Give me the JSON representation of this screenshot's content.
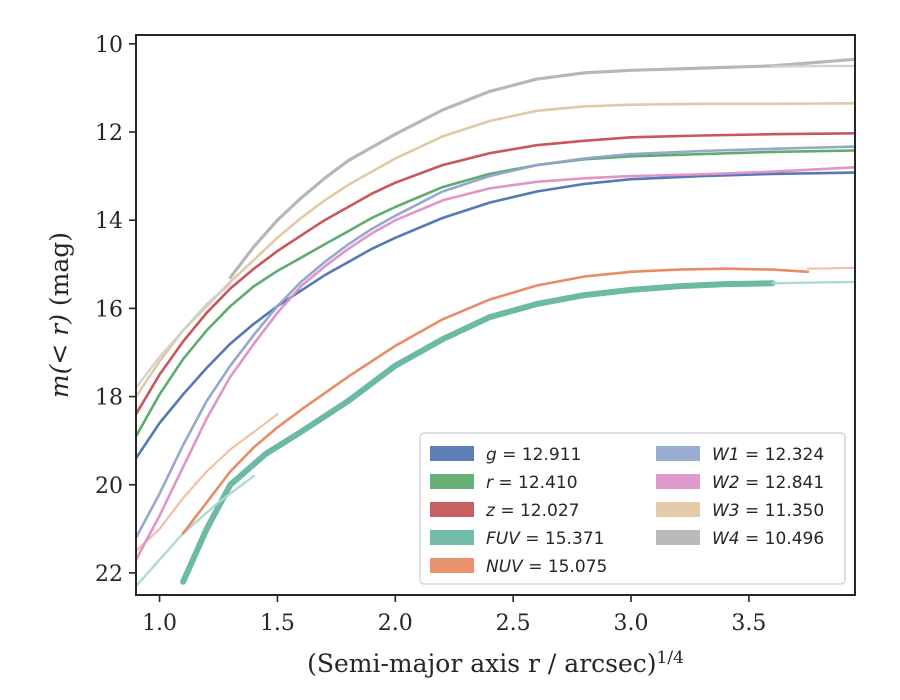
{
  "chart_data": {
    "type": "line",
    "title": "",
    "xlabel": "(Semi-major axis r / arcsec)",
    "xlabel_exponent": "1/4",
    "ylabel_prefix": "m(< r)",
    "ylabel_suffix": " (mag)",
    "xlim": [
      0.9,
      3.95
    ],
    "ylim": [
      22.5,
      9.8
    ],
    "y_inverted": true,
    "grid": false,
    "legend_placement": "lower-right",
    "x_ticks": [
      {
        "v": 1.0,
        "label": "1.0"
      },
      {
        "v": 1.5,
        "label": "1.5"
      },
      {
        "v": 2.0,
        "label": "2.0"
      },
      {
        "v": 2.5,
        "label": "2.5"
      },
      {
        "v": 3.0,
        "label": "3.0"
      },
      {
        "v": 3.5,
        "label": "3.5"
      }
    ],
    "y_ticks": [
      {
        "v": 10,
        "label": "10"
      },
      {
        "v": 12,
        "label": "12"
      },
      {
        "v": 14,
        "label": "14"
      },
      {
        "v": 16,
        "label": "16"
      },
      {
        "v": 18,
        "label": "18"
      },
      {
        "v": 20,
        "label": "20"
      },
      {
        "v": 22,
        "label": "22"
      }
    ],
    "series": [
      {
        "name": "g = 12.911",
        "band": "g",
        "value": "12.911",
        "color": "#4c72b0",
        "width": 2.6,
        "x": [
          0.9,
          1.0,
          1.1,
          1.2,
          1.3,
          1.4,
          1.5,
          1.6,
          1.7,
          1.8,
          1.9,
          2.0,
          2.2,
          2.4,
          2.6,
          2.8,
          3.0,
          3.3,
          3.6,
          3.95
        ],
        "y": [
          19.4,
          18.6,
          17.95,
          17.35,
          16.8,
          16.35,
          15.95,
          15.6,
          15.25,
          14.95,
          14.65,
          14.4,
          13.95,
          13.6,
          13.35,
          13.18,
          13.07,
          13.0,
          12.95,
          12.92
        ]
      },
      {
        "name": "r = 12.410",
        "band": "r",
        "value": "12.410",
        "color": "#55a868",
        "width": 2.6,
        "x": [
          0.9,
          1.0,
          1.1,
          1.2,
          1.3,
          1.4,
          1.5,
          1.6,
          1.7,
          1.8,
          1.9,
          2.0,
          2.2,
          2.4,
          2.6,
          2.8,
          3.0,
          3.3,
          3.6,
          3.95
        ],
        "y": [
          18.9,
          17.95,
          17.15,
          16.5,
          15.95,
          15.5,
          15.15,
          14.85,
          14.55,
          14.25,
          13.95,
          13.7,
          13.25,
          12.95,
          12.75,
          12.62,
          12.55,
          12.5,
          12.45,
          12.42
        ]
      },
      {
        "name": "z = 12.027",
        "band": "z",
        "value": "12.027",
        "color": "#c44e52",
        "width": 2.6,
        "x": [
          0.9,
          1.0,
          1.1,
          1.2,
          1.3,
          1.4,
          1.5,
          1.6,
          1.7,
          1.8,
          1.9,
          2.0,
          2.2,
          2.4,
          2.6,
          2.8,
          3.0,
          3.3,
          3.6,
          3.95
        ],
        "y": [
          18.4,
          17.5,
          16.75,
          16.1,
          15.55,
          15.1,
          14.7,
          14.35,
          14.0,
          13.7,
          13.4,
          13.15,
          12.75,
          12.48,
          12.3,
          12.2,
          12.12,
          12.08,
          12.05,
          12.03
        ]
      },
      {
        "name": "FUV = 15.371",
        "band": "FUV",
        "value": "15.371",
        "color": "#64b5a0",
        "width": 6,
        "x": [
          1.1,
          1.2,
          1.3,
          1.45,
          1.6,
          1.8,
          2.0,
          2.2,
          2.4,
          2.6,
          2.8,
          3.0,
          3.2,
          3.4,
          3.6
        ],
        "y": [
          22.2,
          21.0,
          20.0,
          19.3,
          18.8,
          18.1,
          17.3,
          16.7,
          16.2,
          15.9,
          15.7,
          15.58,
          15.5,
          15.45,
          15.43
        ]
      },
      {
        "name": "",
        "band": "",
        "value": "",
        "color": "#a9d9cb",
        "width": 2.4,
        "x": [
          0.9,
          1.0,
          1.1,
          1.25,
          1.4
        ],
        "y": [
          22.3,
          21.7,
          21.1,
          20.4,
          19.8
        ]
      },
      {
        "name": "",
        "band": "",
        "value": "",
        "color": "#a9d9cb",
        "width": 2.4,
        "x": [
          3.6,
          3.8,
          3.95
        ],
        "y": [
          15.43,
          15.41,
          15.4
        ]
      },
      {
        "name": "NUV = 15.075",
        "band": "NUV",
        "value": "15.075",
        "color": "#e8855d",
        "width": 2.6,
        "x": [
          1.1,
          1.2,
          1.3,
          1.4,
          1.5,
          1.6,
          1.8,
          2.0,
          2.2,
          2.4,
          2.6,
          2.8,
          3.0,
          3.2,
          3.4,
          3.6,
          3.75
        ],
        "y": [
          21.1,
          20.4,
          19.7,
          19.15,
          18.7,
          18.3,
          17.55,
          16.85,
          16.25,
          15.8,
          15.48,
          15.28,
          15.17,
          15.12,
          15.1,
          15.12,
          15.17
        ]
      },
      {
        "name": "",
        "band": "",
        "value": "",
        "color": "#f3bc9f",
        "width": 2.2,
        "x": [
          0.9,
          1.0,
          1.1,
          1.2,
          1.3,
          1.4,
          1.5
        ],
        "y": [
          21.5,
          21.0,
          20.3,
          19.7,
          19.2,
          18.8,
          18.4
        ]
      },
      {
        "name": "",
        "band": "",
        "value": "",
        "color": "#f3bc9f",
        "width": 2.2,
        "x": [
          3.75,
          3.85,
          3.95
        ],
        "y": [
          15.1,
          15.09,
          15.08
        ]
      },
      {
        "name": "W1 = 12.324",
        "band": "W1",
        "value": "12.324",
        "color": "#8fa3cc",
        "width": 2.6,
        "x": [
          0.9,
          1.0,
          1.1,
          1.2,
          1.3,
          1.4,
          1.5,
          1.6,
          1.7,
          1.8,
          1.9,
          2.0,
          2.2,
          2.4,
          2.6,
          2.8,
          3.0,
          3.3,
          3.6,
          3.95
        ],
        "y": [
          21.2,
          20.2,
          19.1,
          18.1,
          17.3,
          16.6,
          15.95,
          15.4,
          14.95,
          14.55,
          14.2,
          13.9,
          13.35,
          13.0,
          12.75,
          12.6,
          12.5,
          12.43,
          12.38,
          12.33
        ]
      },
      {
        "name": "W2 = 12.841",
        "band": "W2",
        "value": "12.841",
        "color": "#dd8fc6",
        "width": 2.6,
        "x": [
          0.9,
          1.0,
          1.1,
          1.2,
          1.3,
          1.4,
          1.5,
          1.6,
          1.7,
          1.8,
          1.9,
          2.0,
          2.2,
          2.4,
          2.6,
          2.8,
          3.0,
          3.3,
          3.6,
          3.95
        ],
        "y": [
          21.7,
          20.7,
          19.6,
          18.5,
          17.55,
          16.8,
          16.1,
          15.5,
          15.05,
          14.65,
          14.3,
          14.0,
          13.55,
          13.28,
          13.13,
          13.05,
          13.0,
          12.96,
          12.9,
          12.8
        ]
      },
      {
        "name": "W3 = 11.350",
        "band": "W3",
        "value": "11.350",
        "color": "#e0c6a1",
        "width": 2.6,
        "x": [
          0.9,
          1.0,
          1.1,
          1.2,
          1.3,
          1.4,
          1.5,
          1.6,
          1.7,
          1.8,
          1.9,
          2.0,
          2.2,
          2.4,
          2.6,
          2.8,
          3.0,
          3.3,
          3.6,
          3.95
        ],
        "y": [
          18.0,
          17.2,
          16.5,
          15.95,
          15.4,
          14.9,
          14.4,
          13.95,
          13.55,
          13.2,
          12.9,
          12.6,
          12.1,
          11.75,
          11.52,
          11.42,
          11.38,
          11.36,
          11.36,
          11.35
        ]
      },
      {
        "name": "W4 = 10.496",
        "band": "W4",
        "value": "10.496",
        "color": "#b3b3b3",
        "width": 3.2,
        "x": [
          1.3,
          1.4,
          1.5,
          1.6,
          1.7,
          1.8,
          1.9,
          2.0,
          2.2,
          2.4,
          2.6,
          2.8,
          3.0,
          3.3,
          3.6,
          3.95
        ],
        "y": [
          15.3,
          14.6,
          14.0,
          13.5,
          13.05,
          12.65,
          12.35,
          12.05,
          11.5,
          11.08,
          10.8,
          10.66,
          10.6,
          10.55,
          10.5,
          10.35
        ]
      },
      {
        "name": "",
        "band": "",
        "value": "",
        "color": "#d0d0d0",
        "width": 2.4,
        "x": [
          0.9,
          1.0,
          1.1,
          1.2,
          1.3
        ],
        "y": [
          17.8,
          17.1,
          16.5,
          15.9,
          15.45
        ]
      },
      {
        "name": "",
        "band": "",
        "value": "",
        "color": "#d0d0d0",
        "width": 2.4,
        "x": [
          3.6,
          3.8,
          3.95
        ],
        "y": [
          10.52,
          10.5,
          10.5
        ]
      }
    ],
    "legend": [
      {
        "band": "g",
        "value": "12.911",
        "color": "#4c72b0"
      },
      {
        "band": "r",
        "value": "12.410",
        "color": "#55a868"
      },
      {
        "band": "z",
        "value": "12.027",
        "color": "#c44e52"
      },
      {
        "band": "FUV",
        "value": "15.371",
        "color": "#64b5a0"
      },
      {
        "band": "NUV",
        "value": "15.075",
        "color": "#e8855d"
      },
      {
        "band": "W1",
        "value": "12.324",
        "color": "#8fa3cc"
      },
      {
        "band": "W2",
        "value": "12.841",
        "color": "#dd8fc6"
      },
      {
        "band": "W3",
        "value": "11.350",
        "color": "#e0c6a1"
      },
      {
        "band": "W4",
        "value": "10.496",
        "color": "#b3b3b3"
      }
    ]
  }
}
